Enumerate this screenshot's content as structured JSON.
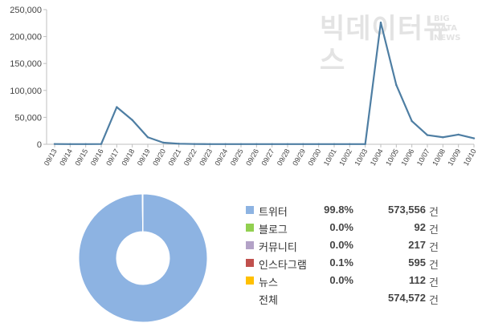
{
  "watermark": {
    "main": "빅데이터뉴스",
    "sub1": "BIG",
    "sub2": "DATA",
    "sub3": "NEWS"
  },
  "chart_data": [
    {
      "type": "line",
      "title": "",
      "xlabel": "",
      "ylabel": "",
      "ylim": [
        0,
        250000
      ],
      "yticks": [
        "0",
        "50,000",
        "100,000",
        "150,000",
        "200,000",
        "250,000"
      ],
      "grid": false,
      "color": "#4e7ea3",
      "categories": [
        "09/13",
        "09/14",
        "09/15",
        "09/16",
        "09/17",
        "09/18",
        "09/19",
        "09/20",
        "09/21",
        "09/22",
        "09/23",
        "09/24",
        "09/25",
        "09/26",
        "09/27",
        "09/28",
        "09/29",
        "09/30",
        "10/01",
        "10/02",
        "10/03",
        "10/04",
        "10/05",
        "10/06",
        "10/07",
        "10/08",
        "10/09",
        "10/10"
      ],
      "values": [
        500,
        300,
        300,
        500,
        69000,
        45000,
        13000,
        3000,
        1000,
        500,
        300,
        300,
        300,
        300,
        300,
        300,
        300,
        300,
        300,
        300,
        300,
        226000,
        110000,
        43000,
        17000,
        13000,
        18000,
        11000
      ]
    },
    {
      "type": "pie",
      "donut": true,
      "slices": [
        {
          "label": "트위터",
          "pct": "99.8%",
          "value": "573,556",
          "share": 0.9982,
          "color": "#8db3e2"
        },
        {
          "label": "블로그",
          "pct": "0.0%",
          "value": "92",
          "share": 0.0002,
          "color": "#92d050"
        },
        {
          "label": "커뮤니티",
          "pct": "0.0%",
          "value": "217",
          "share": 0.0004,
          "color": "#b3a2c7"
        },
        {
          "label": "인스타그램",
          "pct": "0.1%",
          "value": "595",
          "share": 0.001,
          "color": "#c0504d"
        },
        {
          "label": "뉴스",
          "pct": "0.0%",
          "value": "112",
          "share": 0.0002,
          "color": "#ffc000"
        }
      ],
      "total": {
        "label": "전체",
        "value": "574,572"
      },
      "unit": "건"
    }
  ]
}
